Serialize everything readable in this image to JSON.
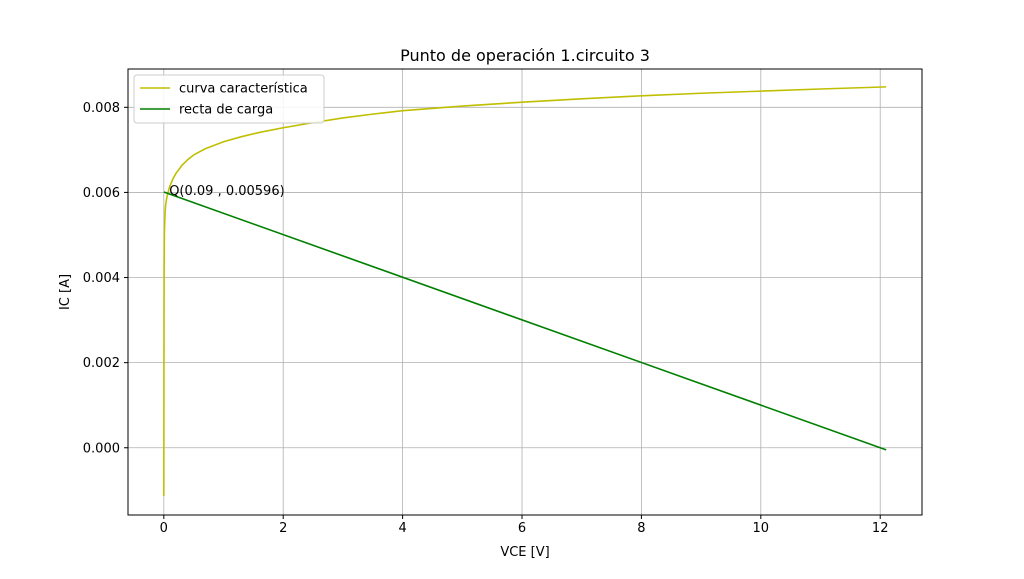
{
  "chart_data": {
    "type": "line",
    "title": "Punto de operación 1.circuito 3",
    "xlabel": "VCE [V]",
    "ylabel": "IC [A]",
    "xlim": [
      -0.6,
      12.7
    ],
    "ylim": [
      -0.00158,
      0.0089
    ],
    "x_ticks": [
      0,
      2,
      4,
      6,
      8,
      10,
      12
    ],
    "x_tick_labels": [
      "0",
      "2",
      "4",
      "6",
      "8",
      "10",
      "12"
    ],
    "y_ticks": [
      0.0,
      0.002,
      0.004,
      0.006,
      0.008
    ],
    "y_tick_labels": [
      "0.000",
      "0.002",
      "0.004",
      "0.006",
      "0.008"
    ],
    "grid": true,
    "legend_position": "upper-left",
    "series": [
      {
        "name": "curva característica",
        "color": "#bfbf00",
        "x": [
          0.0,
          0.002,
          0.005,
          0.01,
          0.02,
          0.03,
          0.05,
          0.08,
          0.1,
          0.15,
          0.2,
          0.3,
          0.4,
          0.5,
          0.7,
          1.0,
          1.3,
          1.6,
          2.0,
          2.5,
          3.0,
          3.5,
          4.0,
          5.0,
          6.0,
          7.0,
          8.0,
          9.0,
          10.0,
          11.0,
          12.1
        ],
        "y": [
          -0.00113,
          0.0017,
          0.0042,
          0.0051,
          0.0055,
          0.0057,
          0.00588,
          0.00605,
          0.00614,
          0.00631,
          0.00644,
          0.00663,
          0.00677,
          0.00688,
          0.00703,
          0.00719,
          0.00731,
          0.00741,
          0.00752,
          0.00764,
          0.00775,
          0.00784,
          0.00792,
          0.00803,
          0.00812,
          0.0082,
          0.00827,
          0.00833,
          0.00838,
          0.00843,
          0.00848
        ]
      },
      {
        "name": "recta de carga",
        "color": "#008000",
        "x": [
          0.0,
          12.1
        ],
        "y": [
          0.00601,
          -5e-05
        ]
      }
    ],
    "annotations": [
      {
        "text": "Q(0.09 , 0.00596)",
        "x": 0.09,
        "y": 0.00596
      }
    ]
  }
}
